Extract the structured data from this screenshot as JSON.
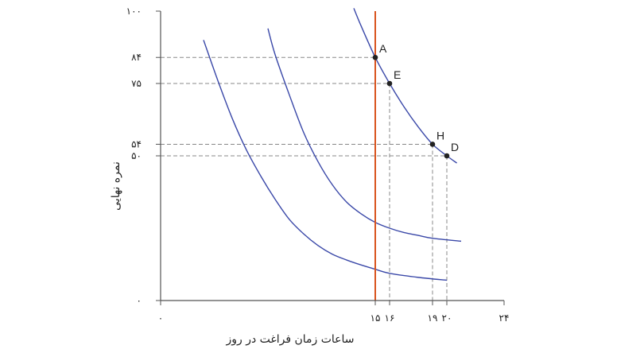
{
  "chart_data": {
    "type": "line",
    "xlabel": "ساعات زمان فراغت در روز",
    "ylabel": "نمره نهایی",
    "xlim": [
      0,
      24
    ],
    "ylim": [
      0,
      100
    ],
    "grid": false,
    "x_ticks": [
      {
        "value": 0,
        "label": "۰"
      },
      {
        "value": 15,
        "label": "۱۵"
      },
      {
        "value": 16,
        "label": "۱۶"
      },
      {
        "value": 19,
        "label": "۱۹"
      },
      {
        "value": 20,
        "label": "۲۰"
      },
      {
        "value": 24,
        "label": "۲۴"
      }
    ],
    "y_ticks": [
      {
        "value": 0,
        "label": "۰"
      },
      {
        "value": 50,
        "label": "۵۰"
      },
      {
        "value": 54,
        "label": "۵۴"
      },
      {
        "value": 75,
        "label": "۷۵"
      },
      {
        "value": 84,
        "label": "۸۴"
      },
      {
        "value": 100,
        "label": "۱۰۰"
      }
    ],
    "vertical_line": {
      "x": 15,
      "color": "#d9541e"
    },
    "curves": [
      {
        "color": "#3a48a8",
        "points": [
          [
            3,
            90
          ],
          [
            4,
            76
          ],
          [
            5,
            63
          ],
          [
            6,
            52
          ],
          [
            7,
            43
          ],
          [
            8,
            35
          ],
          [
            9,
            28
          ],
          [
            10,
            23
          ],
          [
            11,
            19
          ],
          [
            12,
            16
          ],
          [
            13,
            14
          ],
          [
            14,
            12.3
          ],
          [
            15,
            10.8
          ],
          [
            16,
            9.4
          ],
          [
            18,
            8
          ],
          [
            20,
            7
          ]
        ]
      },
      {
        "color": "#3a48a8",
        "points": [
          [
            7.5,
            94
          ],
          [
            8,
            85
          ],
          [
            9,
            71
          ],
          [
            10,
            58
          ],
          [
            11,
            48
          ],
          [
            12,
            40
          ],
          [
            13,
            34
          ],
          [
            14,
            30
          ],
          [
            15,
            27
          ],
          [
            16,
            25
          ],
          [
            17,
            23.5
          ],
          [
            18,
            22.5
          ],
          [
            19,
            21.5
          ],
          [
            21,
            20.5
          ]
        ]
      },
      {
        "color": "#3a48a8",
        "points": [
          [
            13.5,
            101
          ],
          [
            14,
            95
          ],
          [
            15,
            84
          ],
          [
            16,
            75
          ],
          [
            17,
            67
          ],
          [
            18,
            60
          ],
          [
            19,
            54
          ],
          [
            20,
            50
          ],
          [
            20.7,
            47.5
          ]
        ]
      }
    ],
    "points": [
      {
        "label": "A",
        "x": 15,
        "y": 84
      },
      {
        "label": "E",
        "x": 16,
        "y": 75
      },
      {
        "label": "H",
        "x": 19,
        "y": 54
      },
      {
        "label": "D",
        "x": 20,
        "y": 50
      }
    ]
  }
}
